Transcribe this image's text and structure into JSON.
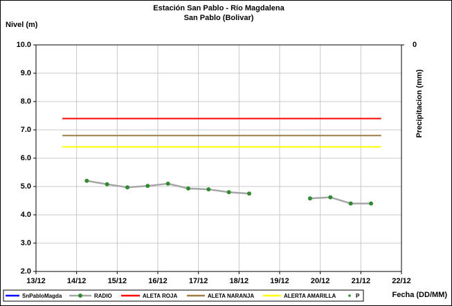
{
  "chart_data": {
    "type": "line",
    "title": "Estación San Pablo - Río Magdalena",
    "subtitle": "San Pablo (Bolivar)",
    "y_label": "Nivel (m)",
    "y2_label": "Precipitacion (mm)",
    "x_label": "Fecha (DD/MM)",
    "xlim": [
      13,
      22
    ],
    "xticks": [
      {
        "value": 13,
        "label": "13/12"
      },
      {
        "value": 14,
        "label": "14/12"
      },
      {
        "value": 15,
        "label": "15/12"
      },
      {
        "value": 16,
        "label": "16/12"
      },
      {
        "value": 17,
        "label": "17/12"
      },
      {
        "value": 18,
        "label": "18/12"
      },
      {
        "value": 19,
        "label": "19/12"
      },
      {
        "value": 20,
        "label": "20/12"
      },
      {
        "value": 21,
        "label": "21/12"
      },
      {
        "value": 22,
        "label": "22/12"
      }
    ],
    "ylim": [
      2,
      10
    ],
    "yticks": [
      {
        "value": 2,
        "label": "2.0"
      },
      {
        "value": 3,
        "label": "3.0"
      },
      {
        "value": 4,
        "label": "4.0"
      },
      {
        "value": 5,
        "label": "5.0"
      },
      {
        "value": 6,
        "label": "6.0"
      },
      {
        "value": 7,
        "label": "7.0"
      },
      {
        "value": 8,
        "label": "8.0"
      },
      {
        "value": 9,
        "label": "9.0"
      },
      {
        "value": 10,
        "label": "10.0"
      }
    ],
    "y2ticks": [
      0
    ],
    "grid": true,
    "legend": "bottom",
    "series": [
      {
        "name": "SnPabloMagda",
        "color": "#0000ff",
        "x": [],
        "values": []
      },
      {
        "name": "RADIO",
        "color": "#a6a6a6",
        "marker_color": "#2e8b2e",
        "x": [
          14.25,
          14.75,
          15.25,
          15.75,
          16.25,
          16.75,
          17.25,
          17.75,
          18.25,
          18.75,
          19.25,
          19.75,
          20.25,
          20.75,
          21.25
        ],
        "values": [
          5.2,
          5.08,
          4.97,
          5.02,
          5.1,
          4.93,
          4.9,
          4.8,
          4.75,
          null,
          null,
          4.58,
          4.62,
          4.4,
          4.4
        ]
      },
      {
        "name": "ALETA ROJA",
        "color": "#ff0000",
        "x": [
          13.65,
          21.5
        ],
        "values": [
          7.4,
          7.4
        ]
      },
      {
        "name": "ALETA NARANJA",
        "color": "#9c7b45",
        "x": [
          13.65,
          21.5
        ],
        "values": [
          6.8,
          6.8
        ]
      },
      {
        "name": "ALERTA AMARILLA",
        "color": "#ffff00",
        "x": [
          13.65,
          21.5
        ],
        "values": [
          6.4,
          6.4
        ]
      },
      {
        "name": "P",
        "color": "#2e8b2e",
        "marker_only": true,
        "x": [],
        "values": []
      }
    ]
  }
}
